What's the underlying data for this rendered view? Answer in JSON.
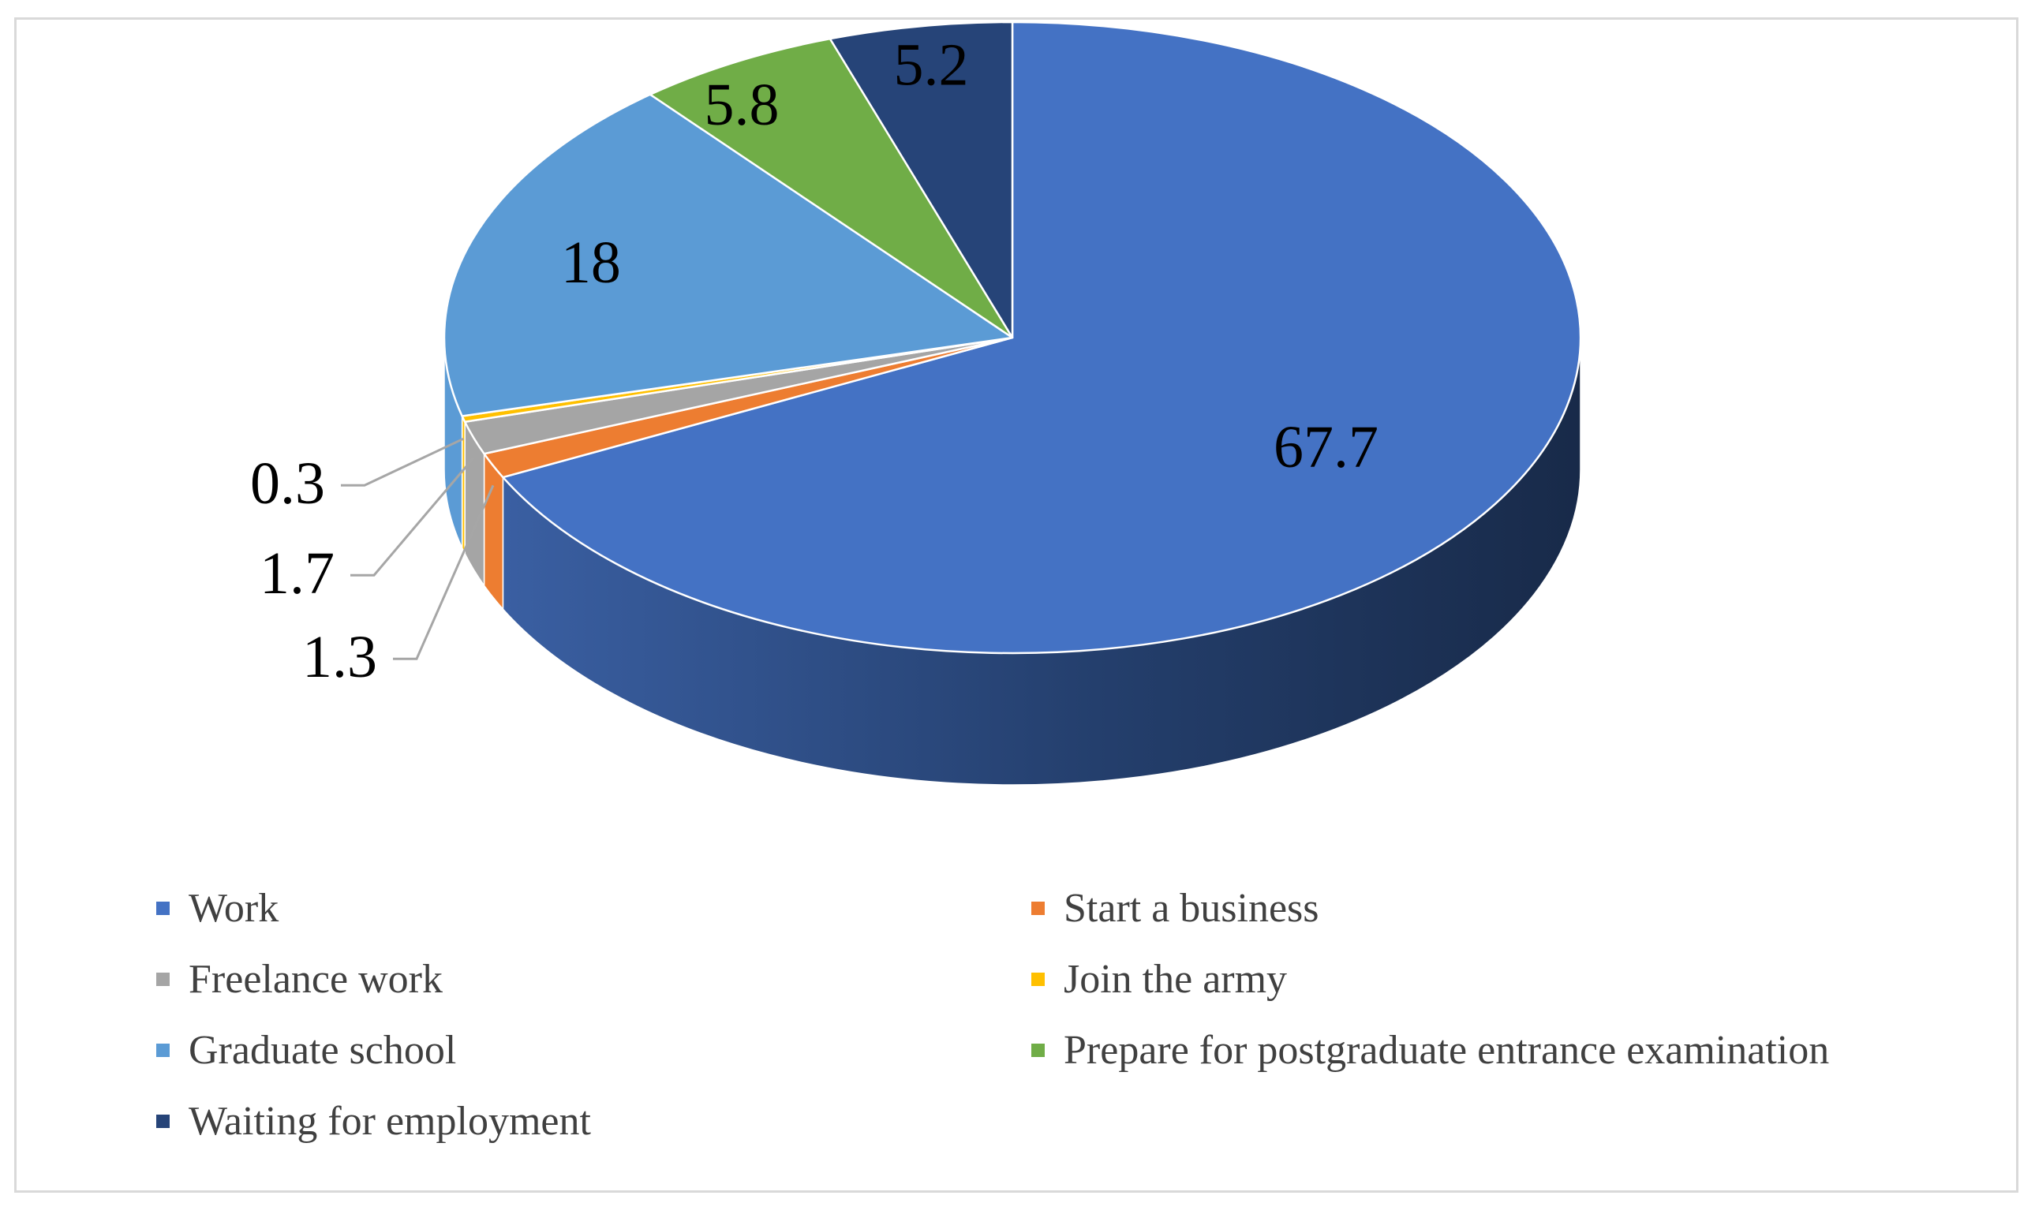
{
  "chart_data": {
    "type": "pie",
    "title": "",
    "style": "3d-pie",
    "slices": [
      {
        "name": "Work",
        "value": 67.7,
        "color": "#4472c4",
        "label": "67.7"
      },
      {
        "name": "Start a business",
        "value": 1.3,
        "color": "#ed7d31",
        "label": "1.3"
      },
      {
        "name": "Freelance work",
        "value": 1.7,
        "color": "#a5a5a5",
        "label": "1.7"
      },
      {
        "name": "Join the army",
        "value": 0.3,
        "color": "#ffc000",
        "label": "0.3"
      },
      {
        "name": "Graduate school",
        "value": 18,
        "color": "#5b9bd5",
        "label": "18"
      },
      {
        "name": "Prepare for postgraduate entrance examination",
        "value": 5.8,
        "color": "#70ad47",
        "label": "5.8"
      },
      {
        "name": "Waiting for employment",
        "value": 5.2,
        "color": "#264478",
        "label": "5.2"
      }
    ],
    "legend_position": "bottom"
  }
}
